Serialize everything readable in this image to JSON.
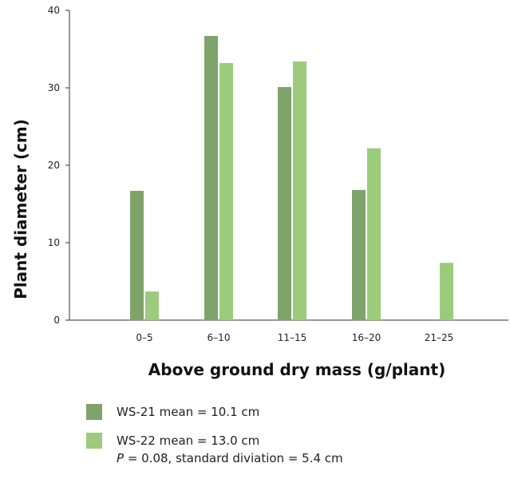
{
  "chart_data": {
    "type": "bar",
    "xlabel": "Above ground dry mass (g/plant)",
    "ylabel": "Plant diameter (cm)",
    "ylim": [
      0,
      40
    ],
    "yticks": [
      0,
      10,
      20,
      30,
      40
    ],
    "categories": [
      "0–5",
      "6–10",
      "11–15",
      "16–20",
      "21–25"
    ],
    "series": [
      {
        "name": "WS-21 mean = 10.1 cm",
        "color": "#7fa46b",
        "values": [
          16.7,
          36.7,
          30.1,
          16.8,
          0
        ]
      },
      {
        "name": "WS-22 mean = 13.0 cm",
        "color": "#9ccb7c",
        "values": [
          3.7,
          33.2,
          33.4,
          22.2,
          7.4
        ]
      }
    ],
    "note_p": "P",
    "note_rest": " = 0.08, standard diviation = 5.4 cm",
    "grid": false,
    "legend_position": "bottom-left"
  }
}
